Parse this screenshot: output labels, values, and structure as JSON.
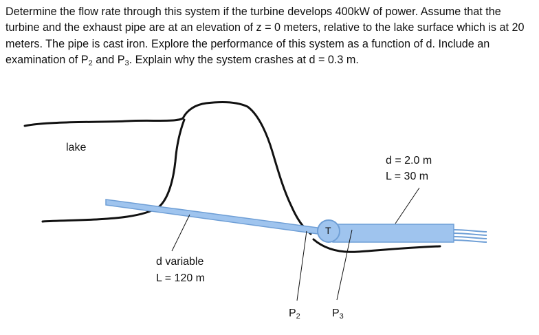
{
  "problem": {
    "part1": "Determine the flow rate through this system if the turbine develops 400kW of power. Assume that the turbine and the exhaust pipe are at an elevation of z = 0 meters, relative to the lake surface which is at 20 meters. The pipe is cast iron. Explore the performance of this system as a function of d. Include an examination of P",
    "sub2": "2",
    "part2": " and P",
    "sub3": "3",
    "part3": ". Explain why the system crashes at d = 0.3 m."
  },
  "labels": {
    "lake": "lake",
    "turbine": "T",
    "exhaust_d": "d = 2.0 m",
    "exhaust_L": "L = 30 m",
    "inlet_d": "d variable",
    "inlet_L": "L = 120 m",
    "p2_letter": "P",
    "p2_sub": "2",
    "p3_letter": "P",
    "p3_sub": "3"
  },
  "colors": {
    "pipe_fill": "#9fc4ee",
    "pipe_stroke": "#6f9fd6",
    "ink": "#111111"
  }
}
